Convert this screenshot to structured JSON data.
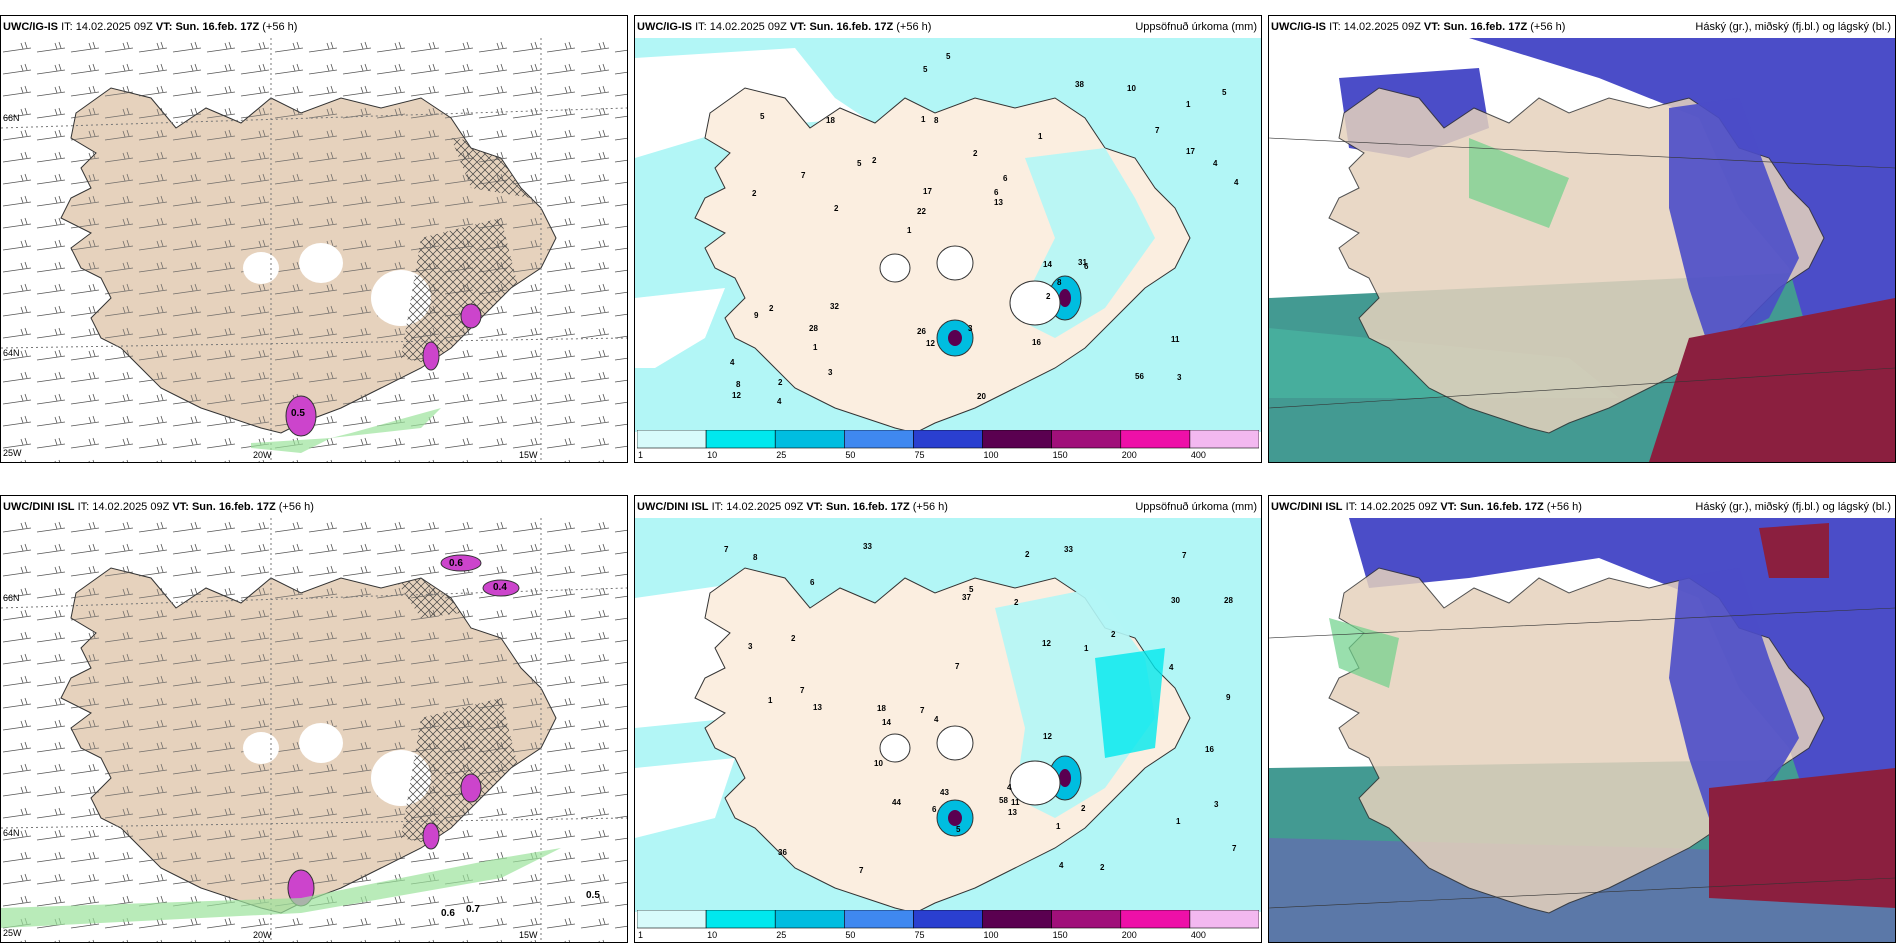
{
  "header": {
    "it_label": "IT:",
    "vt_label": "VT:",
    "run_time": "14.02.2025 09Z",
    "valid_time": "Sun. 16.feb. 17Z",
    "lead": "(+56 h)"
  },
  "models": {
    "top": "UWC/IG-IS",
    "bottom": "UWC/DINI ISL"
  },
  "titles": {
    "precip": "Uppsöfnuð úrkoma (mm)",
    "clouds": "Háský (gr.), miðský (fj.bl.) og lágský (bl.)"
  },
  "axis_labels": {
    "lat_66": "66N",
    "lat_64": "64N",
    "lon_20": "20W",
    "lon_15": "15W",
    "lon_25": "25W"
  },
  "colorbar": {
    "ticks": [
      "1",
      "10",
      "25",
      "50",
      "75",
      "100",
      "150",
      "200",
      "400"
    ],
    "colors": [
      "#d8fbfb",
      "#00e8ee",
      "#00bde0",
      "#3f88f0",
      "#2a3fd0",
      "#5a0050",
      "#a0107a",
      "#ee10a8",
      "#f3b8f0"
    ]
  },
  "wind_panel_top_labels": [
    "0.5"
  ],
  "wind_panel_bottom_labels": [
    "0.6",
    "0.7",
    "0.5",
    "0.6",
    "0.4"
  ],
  "precip_top_values": [
    "3",
    "2",
    "1",
    "1",
    "1",
    "2",
    "1",
    "2",
    "2",
    "2",
    "4",
    "1",
    "8",
    "6",
    "6",
    "5",
    "5",
    "4",
    "14",
    "17",
    "22",
    "26",
    "17",
    "18",
    "38",
    "32",
    "56",
    "11",
    "31",
    "20",
    "5",
    "7",
    "2",
    "3",
    "4",
    "6",
    "8",
    "12",
    "13",
    "9",
    "7",
    "5",
    "8",
    "16",
    "28",
    "4",
    "12",
    "3",
    "10",
    "5",
    "2"
  ],
  "precip_bottom_values": [
    "1",
    "3",
    "4",
    "2",
    "2",
    "1",
    "2",
    "7",
    "6",
    "1",
    "7",
    "18",
    "33",
    "58",
    "43",
    "36",
    "37",
    "30",
    "44",
    "33",
    "28",
    "4",
    "10",
    "8",
    "6",
    "4",
    "5",
    "16",
    "14",
    "13",
    "11",
    "9",
    "12",
    "12",
    "13",
    "7",
    "7",
    "7",
    "3",
    "7",
    "2",
    "1",
    "2",
    "4",
    "5",
    "7",
    "2"
  ]
}
